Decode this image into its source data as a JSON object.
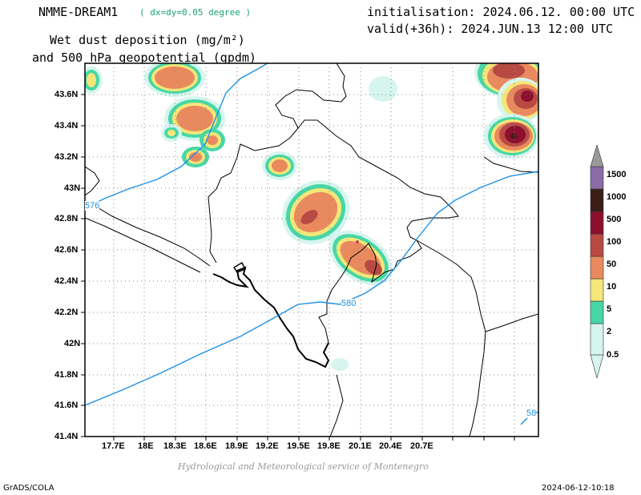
{
  "header": {
    "model": "NMME-DREAM1",
    "resolution": "( dx=dy=0.05 degree )",
    "title_line1": "Wet dust deposition (mg/m²)",
    "title_line2": "and 500 hPa geopotential (gpdm)",
    "init": "initialisation: 2024.06.12. 00:00 UTC",
    "valid": "valid(+36h): 2024.JUN.13 12:00 UTC"
  },
  "map": {
    "lat_ticks": [
      "43.6N",
      "43.4N",
      "43.2N",
      "43N",
      "42.8N",
      "42.6N",
      "42.4N",
      "42.2N",
      "42N",
      "41.8N",
      "41.6N",
      "41.4N"
    ],
    "lon_ticks": [
      "17.7E",
      "18E",
      "18.3E",
      "18.6E",
      "18.9E",
      "19.2E",
      "19.5E",
      "19.8E",
      "20.1E",
      "20.4E",
      "20.7E"
    ],
    "contour_labels": [
      "576",
      "580",
      "58"
    ],
    "contour_color": "#1e90e6"
  },
  "colorbar": {
    "levels": [
      "0.5",
      "2",
      "5",
      "10",
      "50",
      "100",
      "500",
      "1000",
      "1500"
    ],
    "colors": [
      "#d6f5ef",
      "#47d7a6",
      "#f5e67a",
      "#e98a5e",
      "#b84a44",
      "#8c0f2e",
      "#3b1f17",
      "#8a6ba6",
      "#9a9a9a"
    ]
  },
  "footer": {
    "left": "GrADS/COLA",
    "right": "2024-06-12-10:18",
    "credit": "Hydrological and Meteorological service of Montenegro"
  }
}
